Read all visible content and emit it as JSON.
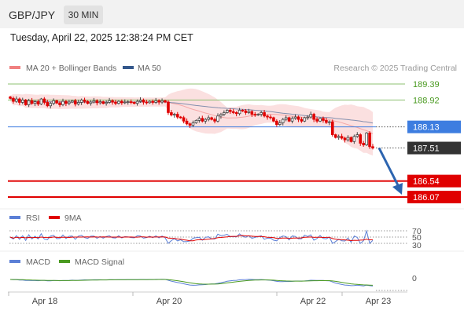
{
  "header": {
    "symbol": "GBP/JPY",
    "interval": "30 MIN",
    "datetime": "Tuesday, April 22, 2025 12:38:24 PM CET"
  },
  "colors": {
    "ma20": "#f08080",
    "ma50": "#34588c",
    "band_fill": "#f9d6d6",
    "resistance": "#8cc070",
    "pivot": "#3d7de0",
    "support": "#e00000",
    "current": "#333333",
    "arrow": "#2d65b0",
    "candle_up": "#444444",
    "candle_down": "#e00000",
    "rsi": "#5b7fd6",
    "rsi_ma": "#e00000",
    "macd": "#5b7fd6",
    "macd_signal": "#4a9a20"
  },
  "legend": {
    "ma20_label": "MA 20 + Bollinger Bands",
    "ma50_label": "MA 50",
    "credit": "Research © 2025 Trading Central"
  },
  "rsi_panel": {
    "rsi_label": "RSI",
    "ma_label": "9MA",
    "ticks": [
      "70",
      "50",
      "30"
    ]
  },
  "macd_panel": {
    "macd_label": "MACD",
    "signal_label": "MACD Signal",
    "ticks": [
      "0"
    ]
  },
  "chart_data": {
    "type": "candlestick",
    "x_labels": [
      "Apr 18",
      "Apr 20",
      "Apr 22",
      "Apr 23"
    ],
    "levels": [
      {
        "value": 189.39,
        "label": "189.39",
        "kind": "resistance"
      },
      {
        "value": 188.92,
        "label": "188.92",
        "kind": "resistance"
      },
      {
        "value": 188.13,
        "label": "188.13",
        "kind": "pivot"
      },
      {
        "value": 187.51,
        "label": "187.51",
        "kind": "current"
      },
      {
        "value": 186.54,
        "label": "186.54",
        "kind": "support"
      },
      {
        "value": 186.07,
        "label": "186.07",
        "kind": "support"
      }
    ],
    "forecast_arrow": {
      "from": 187.51,
      "to": 186.07
    },
    "close_series": [
      188.97,
      188.88,
      188.95,
      188.85,
      188.92,
      188.78,
      188.9,
      188.82,
      188.87,
      188.8,
      188.95,
      188.85,
      188.75,
      188.82,
      188.9,
      188.83,
      188.78,
      188.88,
      188.82,
      188.86,
      188.9,
      188.8,
      188.85,
      188.92,
      188.88,
      188.82,
      188.86,
      188.9,
      188.84,
      188.87,
      188.82,
      188.85,
      188.9,
      188.86,
      188.82,
      188.88,
      188.84,
      188.86,
      188.87,
      188.85,
      188.82,
      188.88,
      188.92,
      188.86,
      188.84,
      188.88,
      188.85,
      188.9,
      188.86,
      188.9,
      188.86,
      188.55,
      188.48,
      188.5,
      188.42,
      188.4,
      188.3,
      188.22,
      188.18,
      188.25,
      188.32,
      188.38,
      188.3,
      188.35,
      188.4,
      188.35,
      188.3,
      188.45,
      188.5,
      188.55,
      188.62,
      188.58,
      188.55,
      188.52,
      188.62,
      188.6,
      188.55,
      188.58,
      188.5,
      188.48,
      188.5,
      188.55,
      188.45,
      188.42,
      188.4,
      188.3,
      188.2,
      188.25,
      188.35,
      188.4,
      188.3,
      188.38,
      188.42,
      188.35,
      188.3,
      188.4,
      188.42,
      188.5,
      188.35,
      188.3,
      188.38,
      188.32,
      188.26,
      188.28,
      187.9,
      187.82,
      187.85,
      187.8,
      187.75,
      187.82,
      187.7,
      187.85,
      187.9,
      187.65,
      187.6,
      187.95,
      187.55,
      187.51
    ]
  }
}
